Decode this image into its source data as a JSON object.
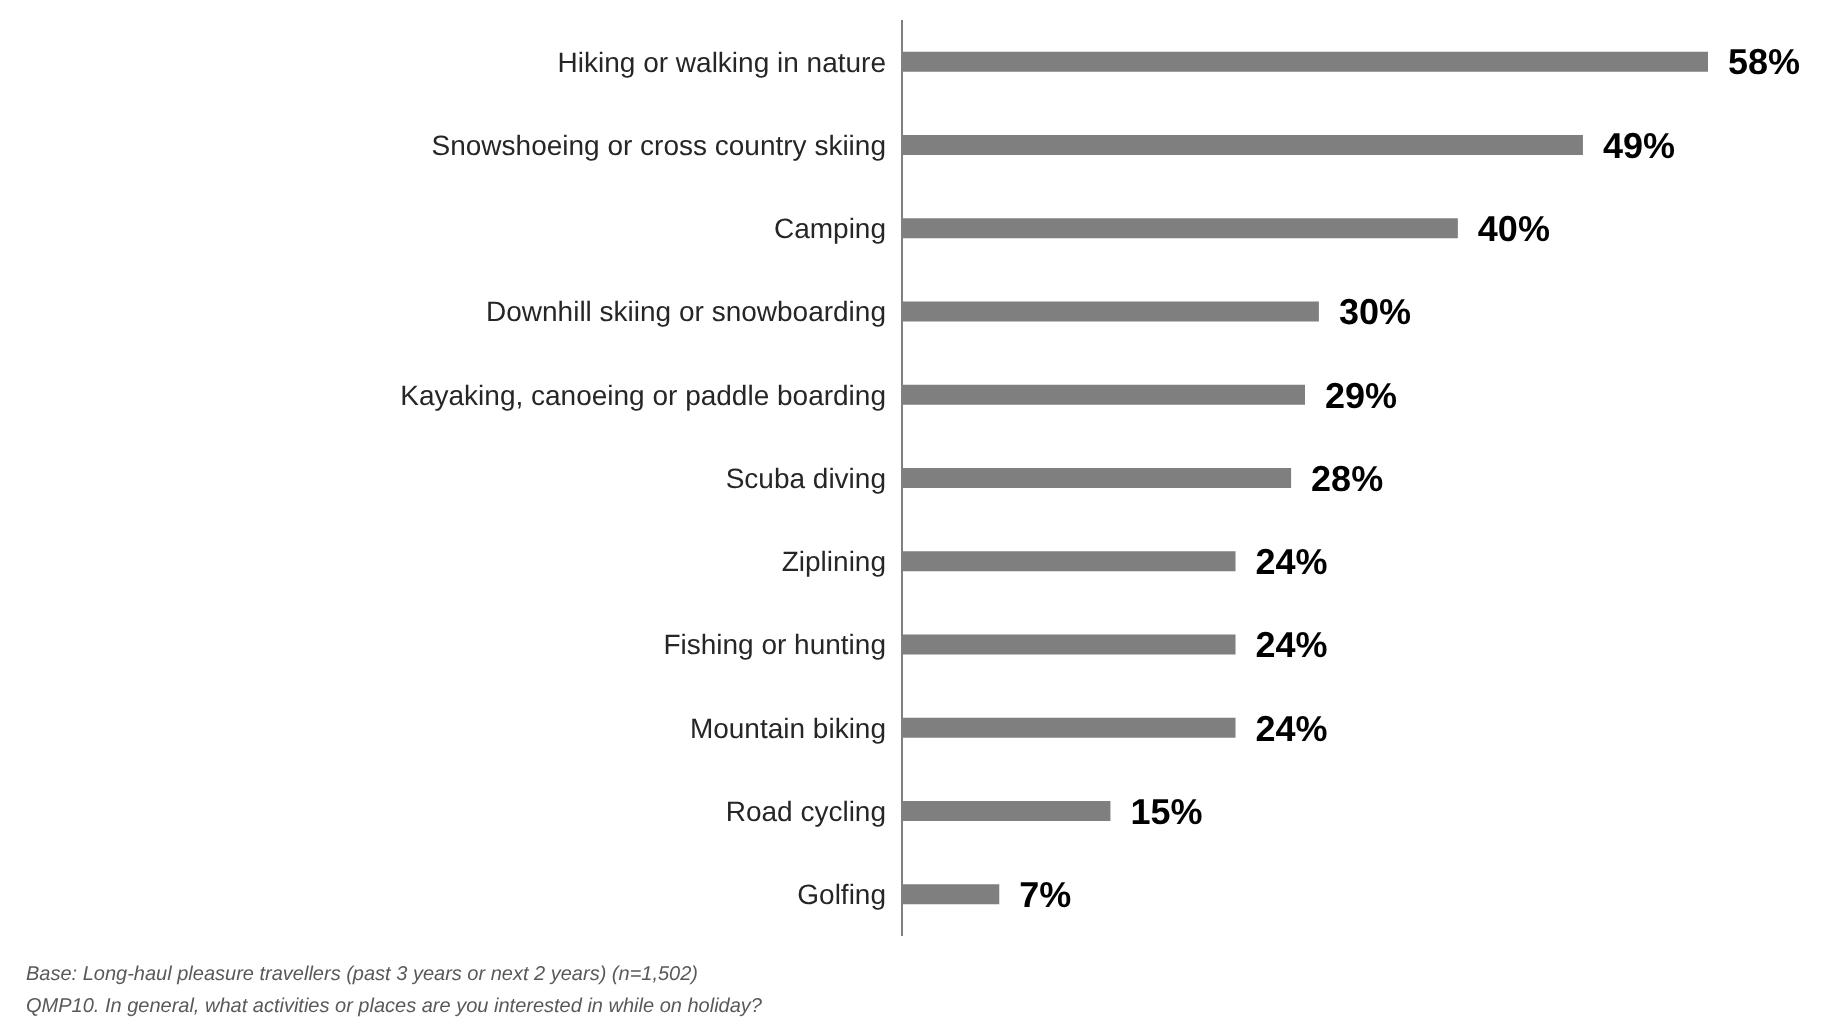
{
  "chart_data": {
    "type": "bar",
    "orientation": "horizontal",
    "categories": [
      "Hiking or walking in nature",
      "Snowshoeing  or cross country skiing",
      "Camping",
      "Downhill  skiing or snowboarding",
      "Kayaking, canoeing or paddle boarding",
      "Scuba diving",
      "Ziplining",
      "Fishing or hunting",
      "Mountain  biking",
      "Road  cycling",
      "Golfing"
    ],
    "values": [
      58,
      49,
      40,
      30,
      29,
      28,
      24,
      24,
      24,
      15,
      7
    ],
    "value_labels": [
      "58%",
      "49%",
      "40%",
      "30%",
      "29%",
      "28%",
      "24%",
      "24%",
      "24%",
      "15%",
      "7%"
    ],
    "color": "#7f7f7f",
    "grid": false,
    "legend": false,
    "annotations": [
      "Base: Long-haul  pleasure  travellers (past 3 years or next 2 years) (n=1,502)",
      "QMP10.  In general,  what activities or places are you interested in while on holiday?"
    ]
  }
}
